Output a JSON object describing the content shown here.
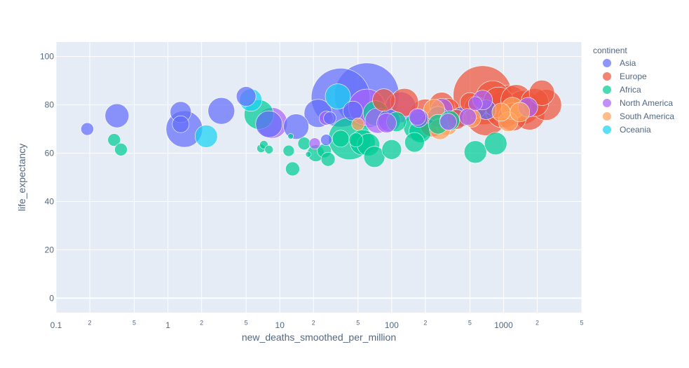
{
  "chart_data": {
    "type": "scatter",
    "subtype": "bubble",
    "xlabel": "new_deaths_smoothed_per_million",
    "ylabel": "life_expectancy",
    "xscale": "log",
    "xlim": [
      0.1,
      5000
    ],
    "ylim": [
      -6,
      106
    ],
    "x_ticks": [
      {
        "value": 0.1,
        "label": "0.1",
        "major": true
      },
      {
        "value": 0.2,
        "label": "2",
        "major": false
      },
      {
        "value": 0.5,
        "label": "5",
        "major": false
      },
      {
        "value": 1,
        "label": "1",
        "major": true
      },
      {
        "value": 2,
        "label": "2",
        "major": false
      },
      {
        "value": 5,
        "label": "5",
        "major": false
      },
      {
        "value": 10,
        "label": "10",
        "major": true
      },
      {
        "value": 20,
        "label": "2",
        "major": false
      },
      {
        "value": 50,
        "label": "5",
        "major": false
      },
      {
        "value": 100,
        "label": "100",
        "major": true
      },
      {
        "value": 200,
        "label": "2",
        "major": false
      },
      {
        "value": 500,
        "label": "5",
        "major": false
      },
      {
        "value": 1000,
        "label": "1000",
        "major": true
      },
      {
        "value": 2000,
        "label": "2",
        "major": false
      },
      {
        "value": 5000,
        "label": "5",
        "major": false
      }
    ],
    "y_ticks": [
      0,
      20,
      40,
      60,
      80,
      100
    ],
    "grid": true,
    "legend": {
      "title": "continent",
      "position": "right"
    },
    "series": [
      {
        "name": "Asia",
        "color": "#636efa",
        "points": [
          {
            "x": 0.19,
            "y": 70,
            "size": 9
          },
          {
            "x": 0.35,
            "y": 75.5,
            "size": 17
          },
          {
            "x": 1.3,
            "y": 77,
            "size": 15
          },
          {
            "x": 1.3,
            "y": 72,
            "size": 12
          },
          {
            "x": 1.4,
            "y": 70,
            "size": 26
          },
          {
            "x": 3.0,
            "y": 77.5,
            "size": 19
          },
          {
            "x": 5.0,
            "y": 83.5,
            "size": 14
          },
          {
            "x": 8.0,
            "y": 72,
            "size": 19
          },
          {
            "x": 14.0,
            "y": 71,
            "size": 18
          },
          {
            "x": 22.0,
            "y": 76.5,
            "size": 20
          },
          {
            "x": 35.0,
            "y": 83,
            "size": 42
          },
          {
            "x": 60.0,
            "y": 84,
            "size": 46
          },
          {
            "x": 95.0,
            "y": 73.5,
            "size": 16
          },
          {
            "x": 175.0,
            "y": 74.5,
            "size": 13
          },
          {
            "x": 260.0,
            "y": 75,
            "size": 15
          },
          {
            "x": 420.0,
            "y": 75,
            "size": 14
          },
          {
            "x": 700.0,
            "y": 78,
            "size": 14
          },
          {
            "x": 26.0,
            "y": 65.5,
            "size": 8
          },
          {
            "x": 28.0,
            "y": 74.5,
            "size": 9
          },
          {
            "x": 45.0,
            "y": 77.5,
            "size": 14
          }
        ]
      },
      {
        "name": "Europe",
        "color": "#ef553b",
        "points": [
          {
            "x": 85,
            "y": 82,
            "size": 16
          },
          {
            "x": 130,
            "y": 81,
            "size": 20
          },
          {
            "x": 200,
            "y": 76,
            "size": 22
          },
          {
            "x": 230,
            "y": 72,
            "size": 18
          },
          {
            "x": 280,
            "y": 80,
            "size": 18
          },
          {
            "x": 320,
            "y": 78,
            "size": 16
          },
          {
            "x": 380,
            "y": 74,
            "size": 14
          },
          {
            "x": 500,
            "y": 81,
            "size": 14
          },
          {
            "x": 560,
            "y": 79,
            "size": 16
          },
          {
            "x": 650,
            "y": 84,
            "size": 42
          },
          {
            "x": 700,
            "y": 76,
            "size": 30
          },
          {
            "x": 800,
            "y": 83,
            "size": 24
          },
          {
            "x": 900,
            "y": 81,
            "size": 22
          },
          {
            "x": 1000,
            "y": 78,
            "size": 26
          },
          {
            "x": 1100,
            "y": 80,
            "size": 28
          },
          {
            "x": 1200,
            "y": 75,
            "size": 20
          },
          {
            "x": 1300,
            "y": 82,
            "size": 22
          },
          {
            "x": 1500,
            "y": 79,
            "size": 24
          },
          {
            "x": 1700,
            "y": 76,
            "size": 22
          },
          {
            "x": 1900,
            "y": 81,
            "size": 20
          },
          {
            "x": 2200,
            "y": 85,
            "size": 18
          },
          {
            "x": 2400,
            "y": 80,
            "size": 22
          }
        ]
      },
      {
        "name": "Africa",
        "color": "#00cc96",
        "points": [
          {
            "x": 0.33,
            "y": 65.5,
            "size": 9
          },
          {
            "x": 0.38,
            "y": 61.5,
            "size": 9
          },
          {
            "x": 6.5,
            "y": 76,
            "size": 21
          },
          {
            "x": 6.8,
            "y": 62,
            "size": 6
          },
          {
            "x": 7.2,
            "y": 63.5,
            "size": 6
          },
          {
            "x": 8.0,
            "y": 61.5,
            "size": 6
          },
          {
            "x": 12,
            "y": 61,
            "size": 8
          },
          {
            "x": 12.5,
            "y": 67,
            "size": 4
          },
          {
            "x": 13,
            "y": 53.5,
            "size": 10
          },
          {
            "x": 16.5,
            "y": 64,
            "size": 9
          },
          {
            "x": 18,
            "y": 59.5,
            "size": 4
          },
          {
            "x": 21,
            "y": 60,
            "size": 12
          },
          {
            "x": 25,
            "y": 61,
            "size": 10
          },
          {
            "x": 27,
            "y": 57.5,
            "size": 10
          },
          {
            "x": 35,
            "y": 66,
            "size": 12
          },
          {
            "x": 42,
            "y": 66,
            "size": 30
          },
          {
            "x": 48,
            "y": 65.5,
            "size": 10
          },
          {
            "x": 55,
            "y": 64.5,
            "size": 18
          },
          {
            "x": 62,
            "y": 63.5,
            "size": 16
          },
          {
            "x": 70,
            "y": 58.5,
            "size": 15
          },
          {
            "x": 72,
            "y": 76.5,
            "size": 18
          },
          {
            "x": 100,
            "y": 61.5,
            "size": 14
          },
          {
            "x": 110,
            "y": 73,
            "size": 14
          },
          {
            "x": 160,
            "y": 64.5,
            "size": 14
          },
          {
            "x": 170,
            "y": 71,
            "size": 20
          },
          {
            "x": 180,
            "y": 69,
            "size": 16
          },
          {
            "x": 260,
            "y": 72,
            "size": 14
          },
          {
            "x": 330,
            "y": 73.5,
            "size": 14
          },
          {
            "x": 560,
            "y": 60.5,
            "size": 16
          },
          {
            "x": 850,
            "y": 64,
            "size": 16
          }
        ]
      },
      {
        "name": "North America",
        "color": "#ab63fa",
        "points": [
          {
            "x": 8.5,
            "y": 72.5,
            "size": 22
          },
          {
            "x": 20.5,
            "y": 64,
            "size": 8
          },
          {
            "x": 26,
            "y": 74.5,
            "size": 10
          },
          {
            "x": 60,
            "y": 79,
            "size": 26
          },
          {
            "x": 75,
            "y": 73.5,
            "size": 18
          },
          {
            "x": 90,
            "y": 72.5,
            "size": 14
          },
          {
            "x": 120,
            "y": 79,
            "size": 22
          },
          {
            "x": 170,
            "y": 75,
            "size": 12
          },
          {
            "x": 280,
            "y": 78,
            "size": 16
          },
          {
            "x": 320,
            "y": 73,
            "size": 12
          },
          {
            "x": 480,
            "y": 75,
            "size": 12
          },
          {
            "x": 560,
            "y": 80.5,
            "size": 10
          },
          {
            "x": 650,
            "y": 82,
            "size": 14
          },
          {
            "x": 1650,
            "y": 79,
            "size": 14
          }
        ]
      },
      {
        "name": "South America",
        "color": "#ffa15a",
        "points": [
          {
            "x": 50,
            "y": 72,
            "size": 9
          },
          {
            "x": 240,
            "y": 78,
            "size": 15
          },
          {
            "x": 270,
            "y": 70,
            "size": 15
          },
          {
            "x": 310,
            "y": 72,
            "size": 16
          },
          {
            "x": 520,
            "y": 74.5,
            "size": 13
          },
          {
            "x": 950,
            "y": 77,
            "size": 13
          },
          {
            "x": 1100,
            "y": 73,
            "size": 14
          },
          {
            "x": 1200,
            "y": 78.5,
            "size": 16
          },
          {
            "x": 1400,
            "y": 77,
            "size": 14
          }
        ]
      },
      {
        "name": "Oceania",
        "color": "#19d3f3",
        "points": [
          {
            "x": 2.2,
            "y": 67,
            "size": 16
          },
          {
            "x": 5.5,
            "y": 82,
            "size": 16
          },
          {
            "x": 33,
            "y": 83.5,
            "size": 18
          }
        ]
      }
    ]
  }
}
